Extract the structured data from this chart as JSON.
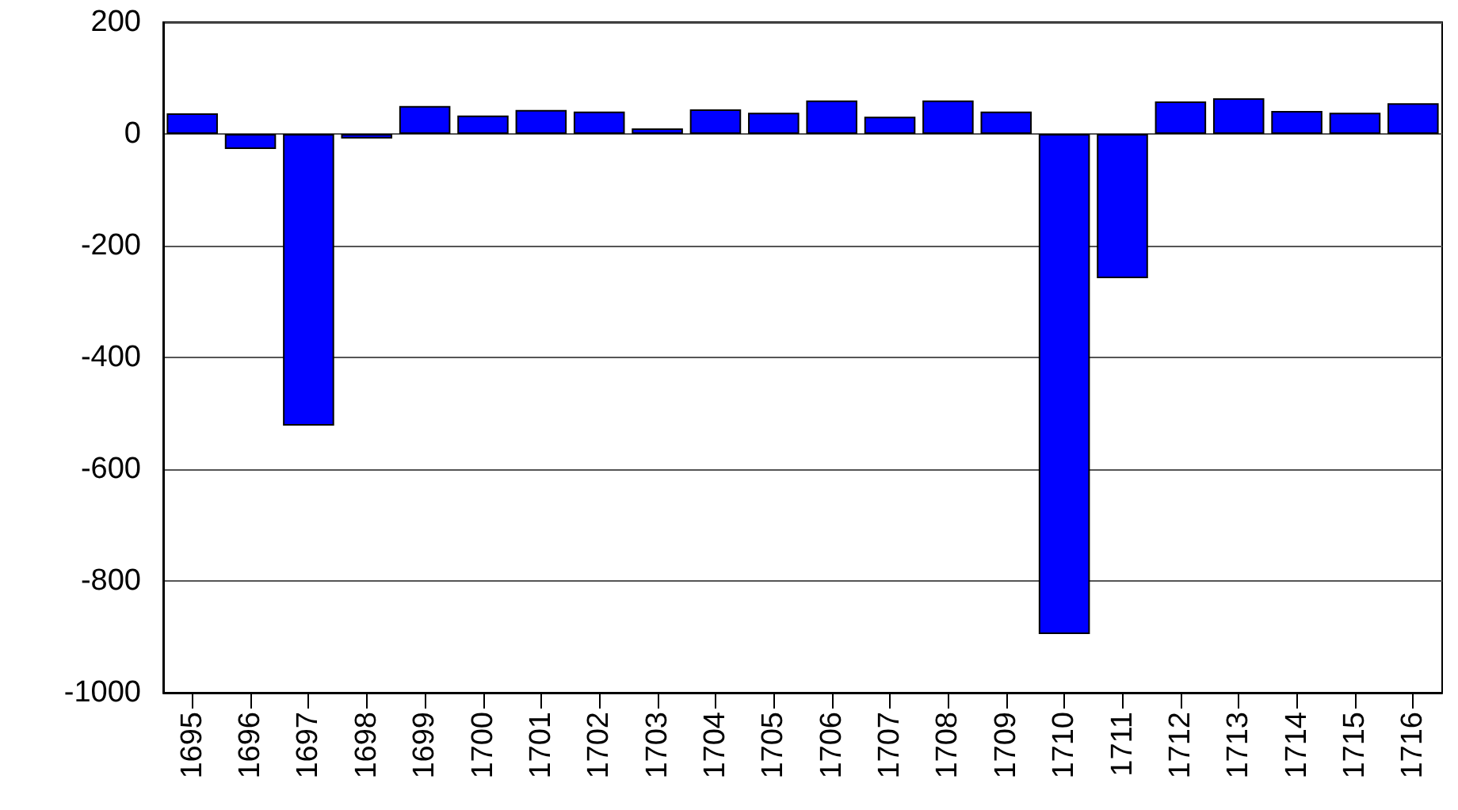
{
  "chart_data": {
    "type": "bar",
    "categories": [
      "1695",
      "1696",
      "1697",
      "1698",
      "1699",
      "1700",
      "1701",
      "1702",
      "1703",
      "1704",
      "1705",
      "1706",
      "1707",
      "1708",
      "1709",
      "1710",
      "1711",
      "1712",
      "1713",
      "1714",
      "1715",
      "1716"
    ],
    "values": [
      37,
      -27,
      -522,
      -8,
      50,
      33,
      43,
      40,
      10,
      44,
      38,
      60,
      31,
      60,
      40,
      -895,
      -258,
      58,
      64,
      41,
      38,
      55
    ],
    "color": "#0000ff",
    "ylim": [
      -1000,
      200
    ],
    "yticks": [
      -1000,
      -800,
      -600,
      -400,
      -200,
      0,
      200
    ],
    "grid": "y"
  }
}
